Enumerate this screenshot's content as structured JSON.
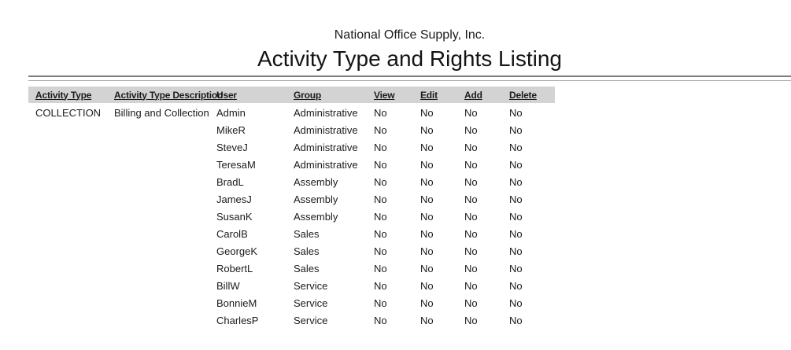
{
  "report": {
    "company": "National Office Supply, Inc.",
    "title": "Activity Type and Rights Listing"
  },
  "table": {
    "columns": [
      {
        "key": "activity_type",
        "label": "Activity Type"
      },
      {
        "key": "description",
        "label": "Activity Type Description"
      },
      {
        "key": "user",
        "label": "User"
      },
      {
        "key": "group",
        "label": "Group"
      },
      {
        "key": "view",
        "label": "View"
      },
      {
        "key": "edit",
        "label": "Edit"
      },
      {
        "key": "add",
        "label": "Add"
      },
      {
        "key": "delete",
        "label": "Delete"
      }
    ],
    "rows": [
      {
        "activity_type": "COLLECTION",
        "description": "Billing and Collection",
        "user": "Admin",
        "group": "Administrative",
        "view": "No",
        "edit": "No",
        "add": "No",
        "delete": "No"
      },
      {
        "activity_type": "",
        "description": "",
        "user": "MikeR",
        "group": "Administrative",
        "view": "No",
        "edit": "No",
        "add": "No",
        "delete": "No"
      },
      {
        "activity_type": "",
        "description": "",
        "user": "SteveJ",
        "group": "Administrative",
        "view": "No",
        "edit": "No",
        "add": "No",
        "delete": "No"
      },
      {
        "activity_type": "",
        "description": "",
        "user": "TeresaM",
        "group": "Administrative",
        "view": "No",
        "edit": "No",
        "add": "No",
        "delete": "No"
      },
      {
        "activity_type": "",
        "description": "",
        "user": "BradL",
        "group": "Assembly",
        "view": "No",
        "edit": "No",
        "add": "No",
        "delete": "No"
      },
      {
        "activity_type": "",
        "description": "",
        "user": "JamesJ",
        "group": "Assembly",
        "view": "No",
        "edit": "No",
        "add": "No",
        "delete": "No"
      },
      {
        "activity_type": "",
        "description": "",
        "user": "SusanK",
        "group": "Assembly",
        "view": "No",
        "edit": "No",
        "add": "No",
        "delete": "No"
      },
      {
        "activity_type": "",
        "description": "",
        "user": "CarolB",
        "group": "Sales",
        "view": "No",
        "edit": "No",
        "add": "No",
        "delete": "No"
      },
      {
        "activity_type": "",
        "description": "",
        "user": "GeorgeK",
        "group": "Sales",
        "view": "No",
        "edit": "No",
        "add": "No",
        "delete": "No"
      },
      {
        "activity_type": "",
        "description": "",
        "user": "RobertL",
        "group": "Sales",
        "view": "No",
        "edit": "No",
        "add": "No",
        "delete": "No"
      },
      {
        "activity_type": "",
        "description": "",
        "user": "BillW",
        "group": "Service",
        "view": "No",
        "edit": "No",
        "add": "No",
        "delete": "No"
      },
      {
        "activity_type": "",
        "description": "",
        "user": "BonnieM",
        "group": "Service",
        "view": "No",
        "edit": "No",
        "add": "No",
        "delete": "No"
      },
      {
        "activity_type": "",
        "description": "",
        "user": "CharlesP",
        "group": "Service",
        "view": "No",
        "edit": "No",
        "add": "No",
        "delete": "No"
      }
    ]
  },
  "colors": {
    "header_band": "#d3d3d3",
    "rule_dark": "#7c7c7c",
    "rule_light": "#a8a8a8",
    "text": "#1b1b1b"
  }
}
